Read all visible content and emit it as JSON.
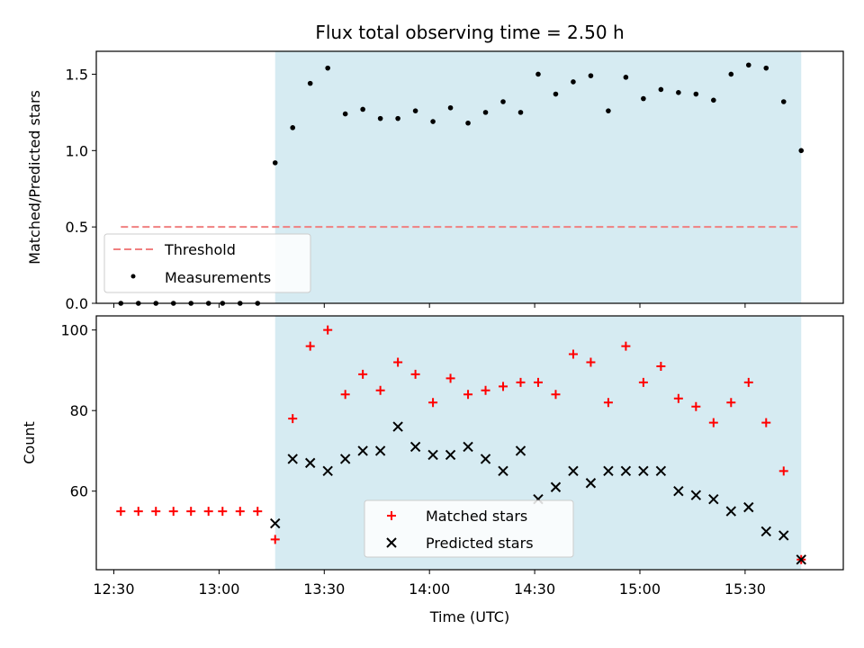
{
  "chart_data": [
    {
      "type": "scatter",
      "title": "Flux total observing time = 2.50 h",
      "ylabel": "Matched/Predicted stars",
      "xlabel": "",
      "xlim": [
        "12:25",
        "15:58"
      ],
      "ylim": [
        0,
        1.65
      ],
      "yticks": [
        "0.0",
        "0.5",
        "1.0",
        "1.5"
      ],
      "grid": false,
      "legend_position": "lower-left",
      "shaded_interval": [
        "13:16",
        "15:46"
      ],
      "colors": {
        "shade": "#add8e6",
        "threshold": "#f08080",
        "measurements": "#000000"
      },
      "threshold": {
        "name": "Threshold",
        "value": 0.5,
        "x_range": [
          "12:32",
          "15:46"
        ]
      },
      "series": [
        {
          "name": "Measurements",
          "x": [
            "12:32",
            "12:37",
            "12:42",
            "12:47",
            "12:52",
            "12:57",
            "13:01",
            "13:06",
            "13:11",
            "13:16",
            "13:21",
            "13:26",
            "13:31",
            "13:36",
            "13:41",
            "13:46",
            "13:51",
            "13:56",
            "14:01",
            "14:06",
            "14:11",
            "14:16",
            "14:21",
            "14:26",
            "14:31",
            "14:36",
            "14:41",
            "14:46",
            "14:51",
            "14:56",
            "15:01",
            "15:06",
            "15:11",
            "15:16",
            "15:21",
            "15:26",
            "15:31",
            "15:36",
            "15:41",
            "15:46"
          ],
          "y": [
            0,
            0,
            0,
            0,
            0,
            0,
            0,
            0,
            0,
            0.92,
            1.15,
            1.44,
            1.54,
            1.24,
            1.27,
            1.21,
            1.21,
            1.26,
            1.19,
            1.28,
            1.18,
            1.25,
            1.32,
            1.25,
            1.5,
            1.37,
            1.45,
            1.49,
            1.26,
            1.48,
            1.34,
            1.4,
            1.38,
            1.37,
            1.33,
            1.5,
            1.56,
            1.54,
            1.32,
            1.0
          ]
        }
      ]
    },
    {
      "type": "scatter",
      "title": "",
      "ylabel": "Count",
      "xlabel": "Time (UTC)",
      "xlim": [
        "12:25",
        "15:58"
      ],
      "ylim": [
        40.5,
        103.5
      ],
      "yticks": [
        "60",
        "80",
        "100"
      ],
      "xticks": [
        "12:30",
        "13:00",
        "13:30",
        "14:00",
        "14:30",
        "15:00",
        "15:30"
      ],
      "grid": false,
      "legend_position": "lower-center",
      "shaded_interval": [
        "13:16",
        "15:46"
      ],
      "colors": {
        "shade": "#add8e6",
        "matched": "#ff0000",
        "predicted": "#000000"
      },
      "series": [
        {
          "name": "Matched stars",
          "x": [
            "12:32",
            "12:37",
            "12:42",
            "12:47",
            "12:52",
            "12:57",
            "13:01",
            "13:06",
            "13:11",
            "13:16",
            "13:21",
            "13:26",
            "13:31",
            "13:36",
            "13:41",
            "13:46",
            "13:51",
            "13:56",
            "14:01",
            "14:06",
            "14:11",
            "14:16",
            "14:21",
            "14:26",
            "14:31",
            "14:36",
            "14:41",
            "14:46",
            "14:51",
            "14:56",
            "15:01",
            "15:06",
            "15:11",
            "15:16",
            "15:21",
            "15:26",
            "15:31",
            "15:36",
            "15:41",
            "15:46"
          ],
          "y": [
            55,
            55,
            55,
            55,
            55,
            55,
            55,
            55,
            55,
            48,
            78,
            96,
            100,
            84,
            89,
            85,
            92,
            89,
            82,
            88,
            84,
            85,
            86,
            87,
            87,
            84,
            94,
            92,
            82,
            96,
            87,
            91,
            83,
            81,
            77,
            82,
            87,
            77,
            65,
            43
          ]
        },
        {
          "name": "Predicted stars",
          "x": [
            "13:16",
            "13:21",
            "13:26",
            "13:31",
            "13:36",
            "13:41",
            "13:46",
            "13:51",
            "13:56",
            "14:01",
            "14:06",
            "14:11",
            "14:16",
            "14:21",
            "14:26",
            "14:31",
            "14:36",
            "14:41",
            "14:46",
            "14:51",
            "14:56",
            "15:01",
            "15:06",
            "15:11",
            "15:16",
            "15:21",
            "15:26",
            "15:31",
            "15:36",
            "15:41",
            "15:46"
          ],
          "y": [
            52,
            68,
            67,
            65,
            68,
            70,
            70,
            76,
            71,
            69,
            69,
            71,
            68,
            65,
            70,
            58,
            61,
            65,
            62,
            65,
            65,
            65,
            65,
            60,
            59,
            58,
            55,
            56,
            50,
            49,
            43
          ]
        }
      ]
    }
  ]
}
